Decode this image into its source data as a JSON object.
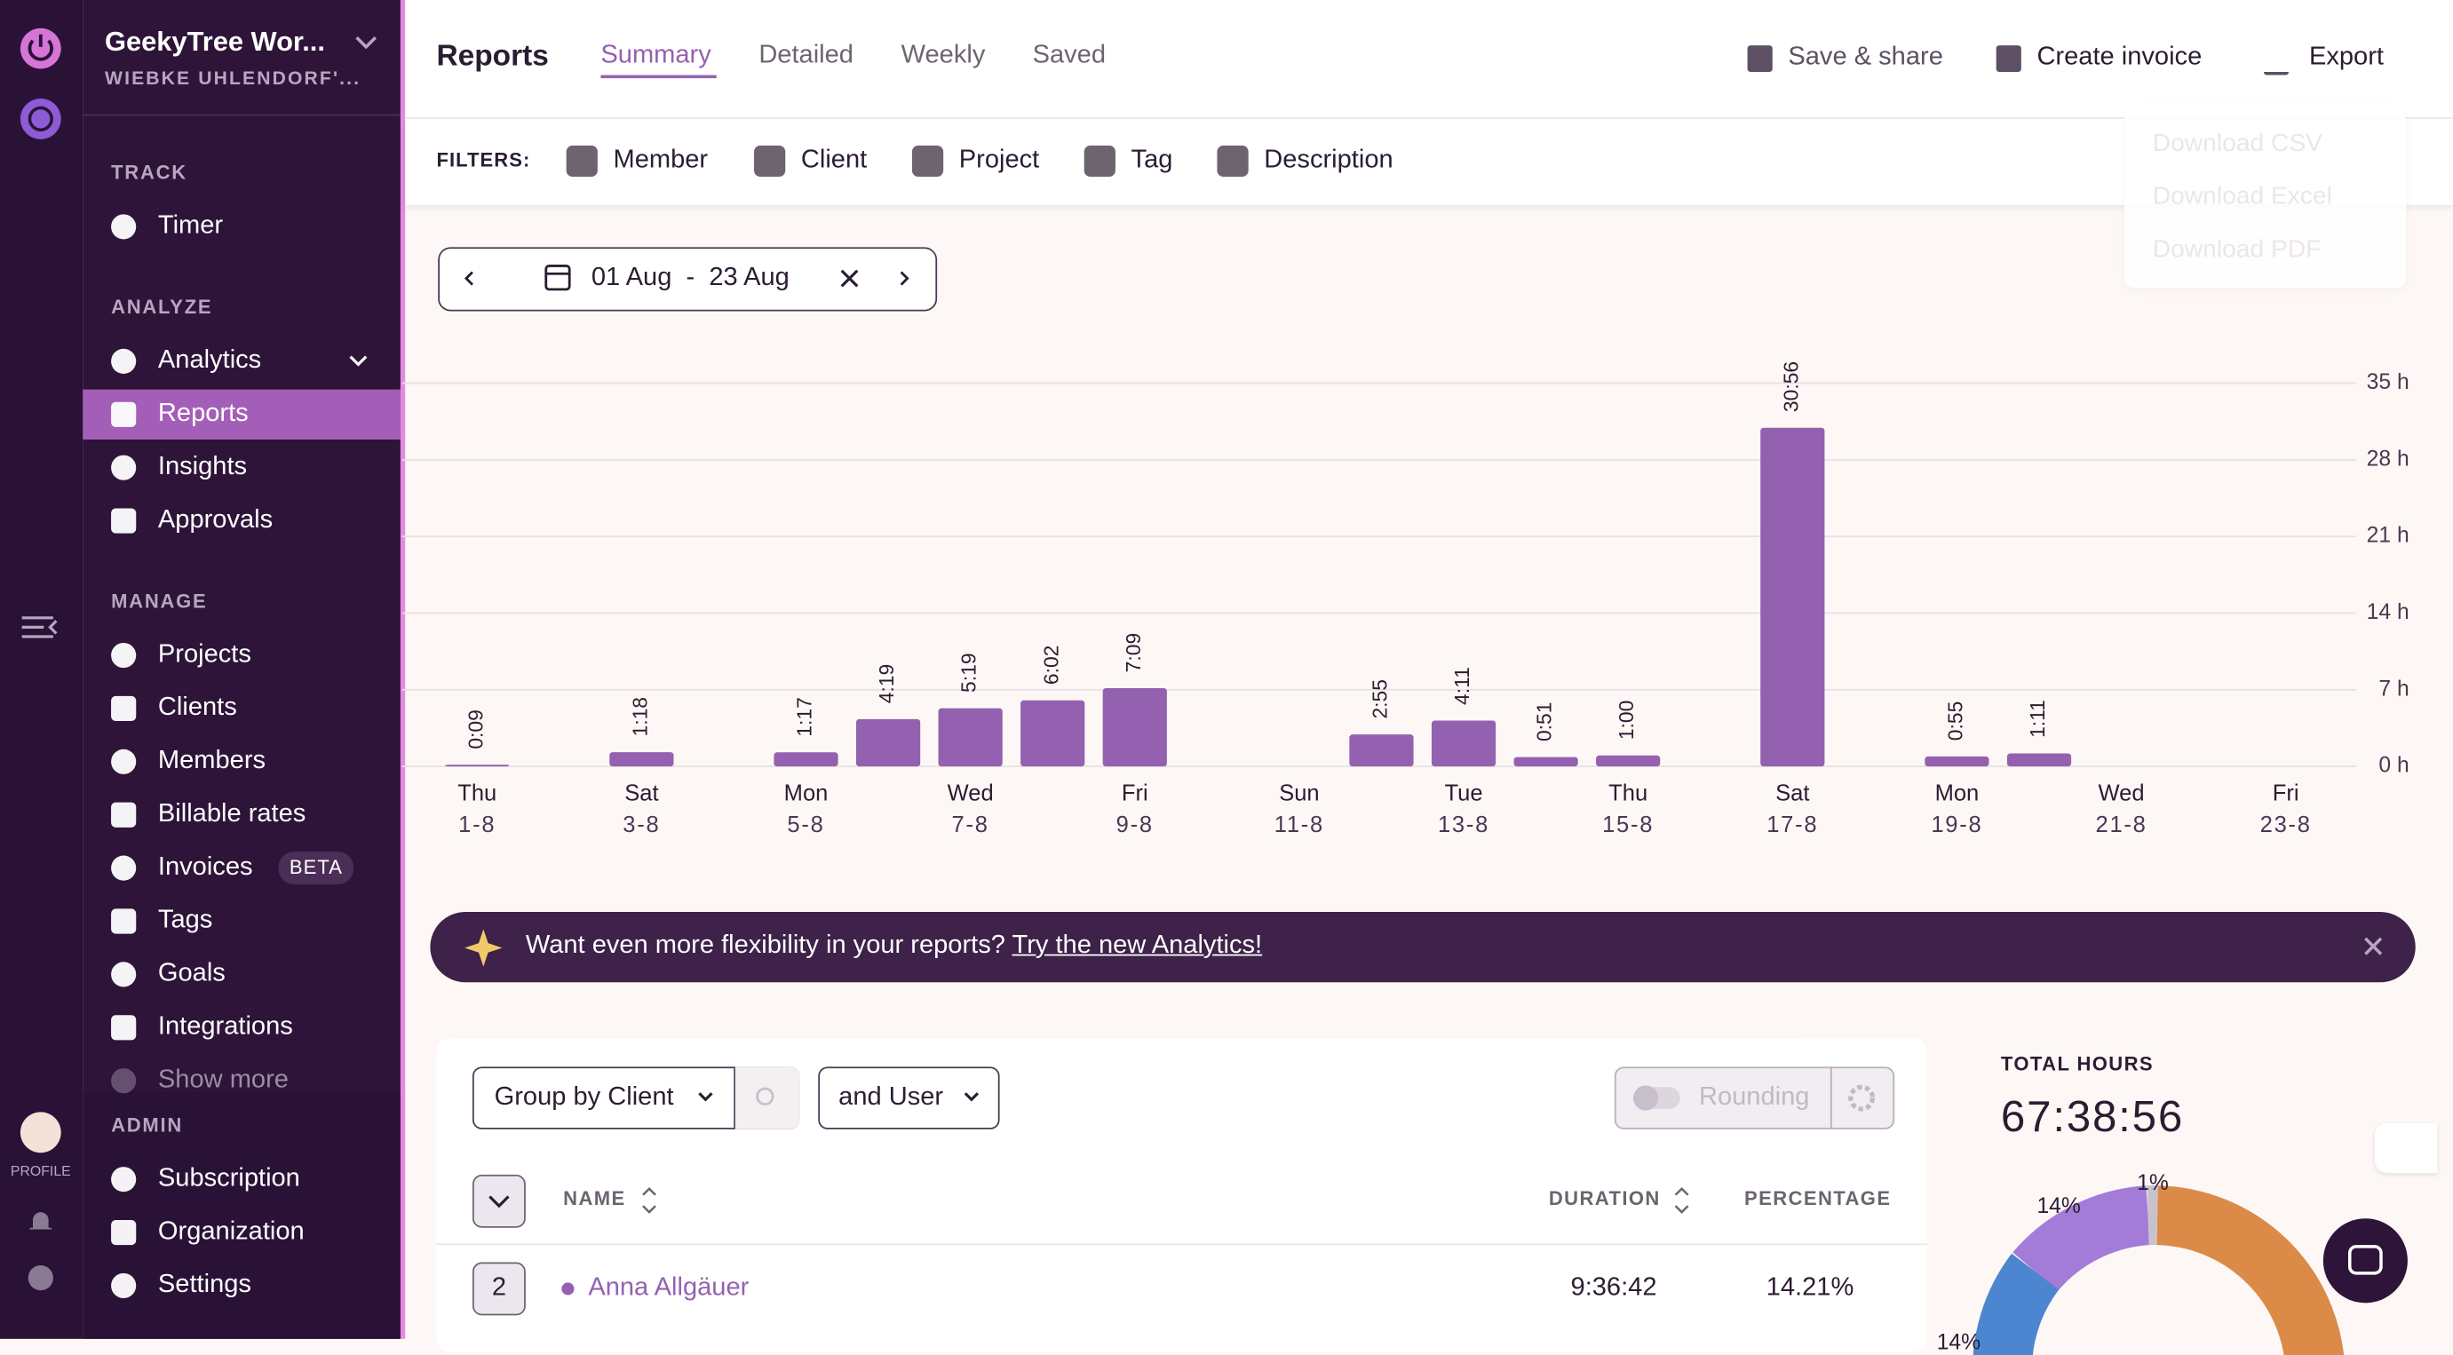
{
  "workspace": {
    "name": "GeekyTree Wor...",
    "owner": "WIEBKE UHLENDORF'..."
  },
  "sidebar": {
    "sections": [
      {
        "title": "TRACK",
        "items": [
          "Timer"
        ]
      },
      {
        "title": "ANALYZE",
        "items": [
          "Analytics",
          "Reports",
          "Insights",
          "Approvals"
        ]
      },
      {
        "title": "MANAGE",
        "items": [
          "Projects",
          "Clients",
          "Members",
          "Billable rates",
          "Invoices",
          "Tags",
          "Goals",
          "Integrations",
          "Show more"
        ]
      },
      {
        "title": "ADMIN",
        "items": [
          "Subscription",
          "Organization",
          "Settings"
        ]
      }
    ],
    "badge": "BETA",
    "profile": "PROFILE"
  },
  "header": {
    "title": "Reports",
    "tabs": [
      "Summary",
      "Detailed",
      "Weekly",
      "Saved"
    ],
    "actions": [
      "Save & share",
      "Create invoice",
      "Export"
    ],
    "export_menu": [
      "Download CSV",
      "Download Excel",
      "Download PDF"
    ]
  },
  "filters": {
    "label": "FILTERS:",
    "items": [
      "Member",
      "Client",
      "Project",
      "Tag",
      "Description"
    ]
  },
  "date_range": "01 Aug  -  23 Aug",
  "chart_data": {
    "type": "bar",
    "categories": [
      "1-8",
      null,
      "3-8",
      null,
      "5-8",
      null,
      "7-8",
      null,
      "9-8",
      null,
      "11-8",
      null,
      "13-8",
      null,
      "15-8",
      null,
      "17-8",
      null,
      "19-8",
      null,
      "21-8",
      null,
      "23-8"
    ],
    "weekdays": [
      "Thu",
      null,
      "Sat",
      null,
      "Mon",
      null,
      "Wed",
      null,
      "Fri",
      null,
      "Sun",
      null,
      "Tue",
      null,
      "Thu",
      null,
      "Sat",
      null,
      "Mon",
      null,
      "Wed",
      null,
      "Fri"
    ],
    "values": [
      0.15,
      0,
      1.3,
      0,
      1.2833,
      4.3167,
      5.3167,
      6.0333,
      7.15,
      0,
      0,
      2.9167,
      4.1833,
      0.85,
      1,
      0,
      30.9333,
      0,
      0.9167,
      1.1833,
      0,
      0,
      0
    ],
    "value_labels": [
      "0:09",
      null,
      "1:18",
      null,
      "1:17",
      "4:19",
      "5:19",
      "6:02",
      "7:09",
      null,
      null,
      "2:55",
      "4:11",
      "0:51",
      "1:00",
      null,
      "30:56",
      null,
      "0:55",
      "1:11",
      null,
      null,
      null
    ],
    "color": "#9461b0",
    "ylim": [
      0,
      35
    ],
    "yticks": [
      {
        "value": 0,
        "label": "0 h"
      },
      {
        "value": 7,
        "label": "7 h"
      },
      {
        "value": 14,
        "label": "14 h"
      },
      {
        "value": 21,
        "label": "21 h"
      },
      {
        "value": 28,
        "label": "28 h"
      },
      {
        "value": 35,
        "label": "35 h"
      }
    ],
    "grid": true
  },
  "banner": {
    "text": "Want even more flexibility in your reports?",
    "link": "Try the new Analytics!"
  },
  "controls": {
    "group_by": "Group by Client",
    "and_user": "and User",
    "rounding": "Rounding"
  },
  "table": {
    "columns": [
      "NAME",
      "DURATION",
      "PERCENTAGE"
    ],
    "rows": [
      {
        "count": 2,
        "name": "Anna Allgäuer",
        "duration": "9:36:42",
        "percentage": "14.21%"
      }
    ]
  },
  "totals": {
    "label": "TOTAL HOURS",
    "value": "67:38:56"
  },
  "donut_labels": [
    "14%",
    "1%",
    "14%"
  ]
}
